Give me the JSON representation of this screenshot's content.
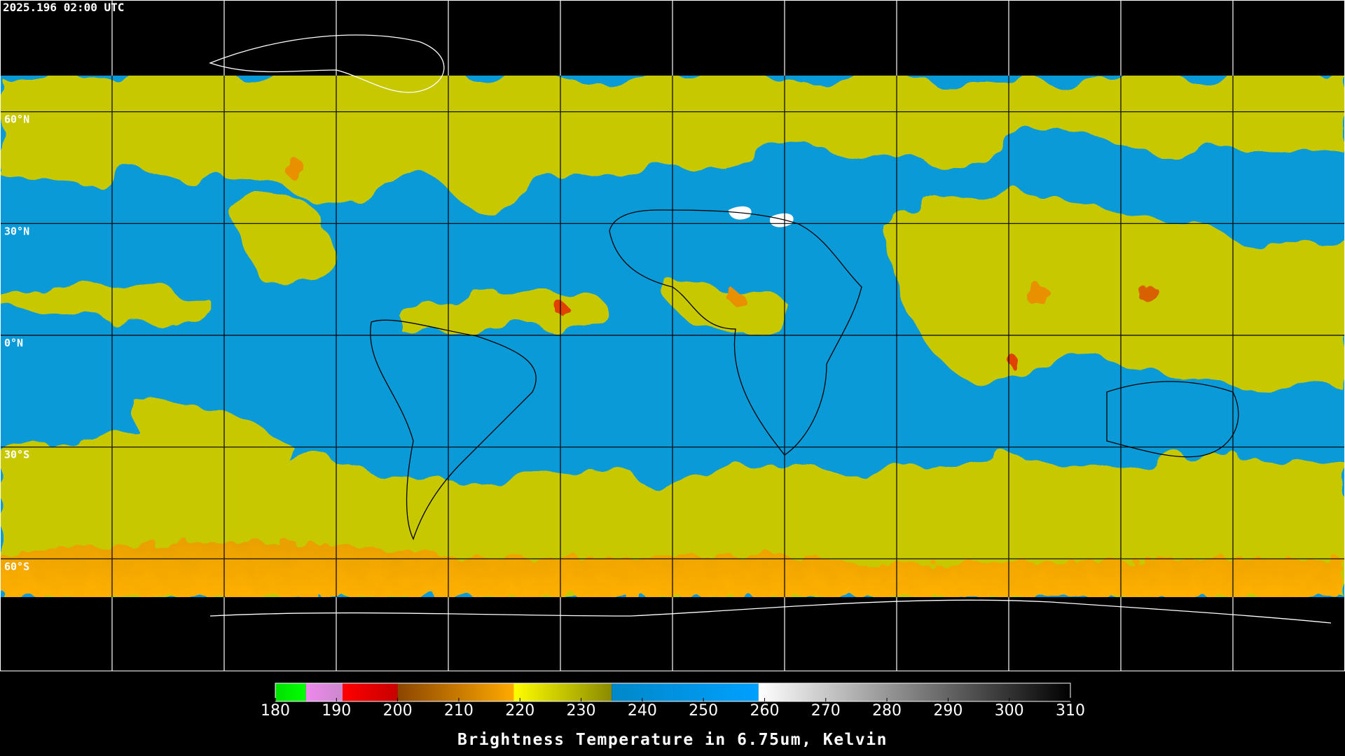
{
  "header": {
    "timestamp": "2025.196 02:00 UTC"
  },
  "map": {
    "lat_labels": [
      "60°N",
      "30°N",
      "0°N",
      "30°S",
      "60°S"
    ]
  },
  "colorbar": {
    "range": [
      180,
      310
    ],
    "ticks": [
      180,
      190,
      200,
      210,
      220,
      230,
      240,
      250,
      260,
      270,
      280,
      290,
      300,
      310
    ],
    "segments": [
      {
        "from": 180,
        "to": 185,
        "colors": [
          "#00e000",
          "#00ff00"
        ]
      },
      {
        "from": 185,
        "to": 191,
        "colors": [
          "#ee88ee",
          "#cc88cc"
        ]
      },
      {
        "from": 191,
        "to": 200,
        "colors": [
          "#ff0000",
          "#c80000"
        ]
      },
      {
        "from": 200,
        "to": 219,
        "colors": [
          "#8b4500",
          "#ffaa00"
        ]
      },
      {
        "from": 219,
        "to": 235,
        "colors": [
          "#ffff00",
          "#8a8a00"
        ]
      },
      {
        "from": 235,
        "to": 259,
        "colors": [
          "#0088c8",
          "#00a0ff"
        ]
      },
      {
        "from": 259,
        "to": 310,
        "colors": [
          "#ffffff",
          "#000000"
        ]
      }
    ],
    "title": "Brightness Temperature in 6.75um, Kelvin"
  }
}
